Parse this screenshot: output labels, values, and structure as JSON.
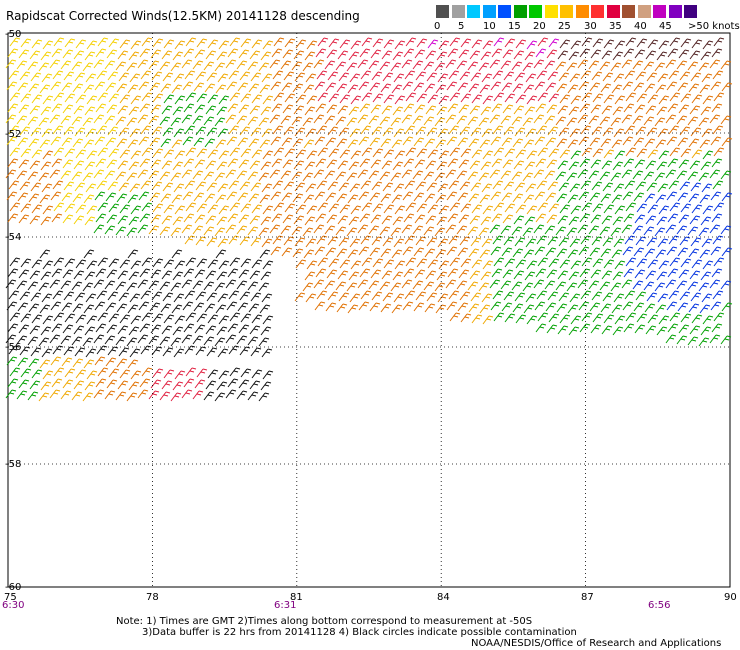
{
  "title": "Rapidscat Corrected Winds(12.5KM) 20141128 descending",
  "legend": {
    "colors": [
      "#505050",
      "#a0a0a0",
      "#00c8ff",
      "#00a0ff",
      "#0050ff",
      "#00a000",
      "#00c800",
      "#ffe000",
      "#ffc000",
      "#ff8c00",
      "#ff3030",
      "#e00040",
      "#a05030",
      "#d0a080",
      "#c000c0",
      "#8000c0",
      "#400080"
    ],
    "labels": [
      "0",
      "5",
      "10",
      "15",
      "20",
      "25",
      "30",
      "35",
      "40",
      "45",
      ">50 knots"
    ]
  },
  "axes": {
    "lon_labels": [
      "75",
      "78",
      "81",
      "84",
      "87",
      "90"
    ],
    "lat_labels": [
      "-50",
      "-52",
      "-54",
      "-56",
      "-58",
      "-60"
    ],
    "lon_range": [
      75,
      90
    ],
    "lat_range": [
      -60,
      -50
    ],
    "grid": "dotted"
  },
  "times": [
    "6:30",
    "6:31",
    "6:56"
  ],
  "notes": [
    "Note: 1) Times are GMT 2)Times along bottom correspond to measurement at -50S",
    "3)Data buffer is 22 hrs from 20141128 4) Black circles indicate possible contamination",
    "NOAA/NESDIS/Office of Research and Applications"
  ],
  "colors": {
    "black": "#111111",
    "green": "#00a000",
    "blue": "#0030e0",
    "yellow": "#f5d000",
    "gold": "#f0a800",
    "orange": "#e07000",
    "red": "#e02040",
    "dark": "#502020",
    "magenta": "#d000d0"
  }
}
